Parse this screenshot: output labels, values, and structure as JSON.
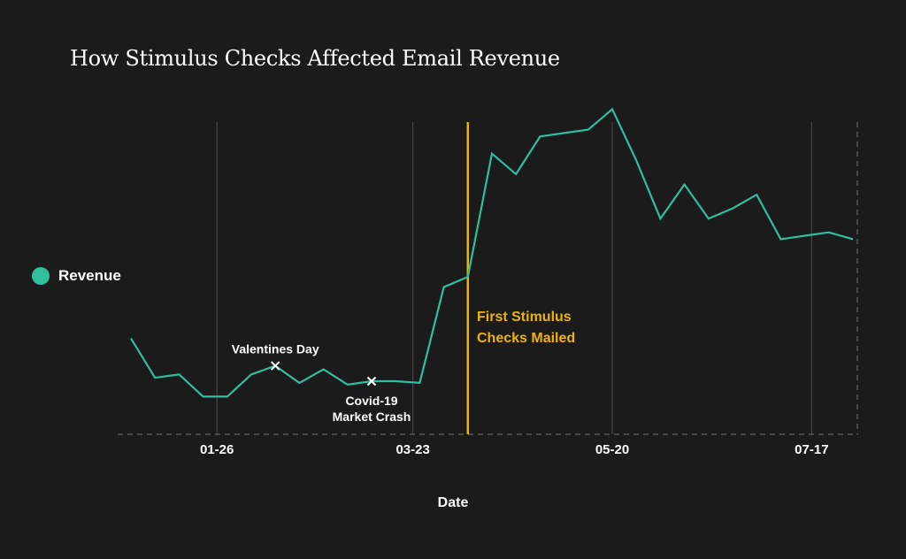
{
  "chart_data": {
    "type": "line",
    "title": "How Stimulus Checks Affected Email Revenue",
    "xlabel": "Date",
    "ylabel": "",
    "legend": {
      "position": "left",
      "entries": [
        "Revenue"
      ]
    },
    "x_ticks": [
      "01-26",
      "03-23",
      "05-20",
      "07-17"
    ],
    "series": [
      {
        "name": "Revenue",
        "color": "#2fbf9c",
        "x": [
          "01-01",
          "01-08",
          "01-15",
          "01-22",
          "01-29",
          "02-05",
          "02-12",
          "02-19",
          "02-26",
          "03-04",
          "03-11",
          "03-18",
          "03-25",
          "04-01",
          "04-08",
          "04-15",
          "04-22",
          "04-29",
          "05-06",
          "05-13",
          "05-20",
          "05-27",
          "06-03",
          "06-10",
          "06-17",
          "06-24",
          "07-01",
          "07-08",
          "07-15",
          "07-22",
          "07-29"
        ],
        "values": [
          28,
          16.5,
          17.5,
          11,
          11,
          17.5,
          20,
          15,
          19,
          14.5,
          15.5,
          15.5,
          15,
          43,
          46,
          82,
          76,
          87,
          88,
          89,
          95,
          80,
          63,
          73,
          63,
          66,
          70,
          57,
          58,
          59,
          57
        ]
      }
    ],
    "annotations": [
      {
        "label": "Valentines Day",
        "x": "02-12",
        "y": 20,
        "marker": "x"
      },
      {
        "label": "Covid-19",
        "label2": "Market Crash",
        "x": "03-11",
        "y": 15.5,
        "marker": "x"
      }
    ],
    "reference_line": {
      "label": "First Stimulus",
      "label2": "Checks Mailed",
      "x": "04-08",
      "color": "#f0b400"
    },
    "grid": "vertical",
    "ylim": [
      0,
      100
    ]
  }
}
